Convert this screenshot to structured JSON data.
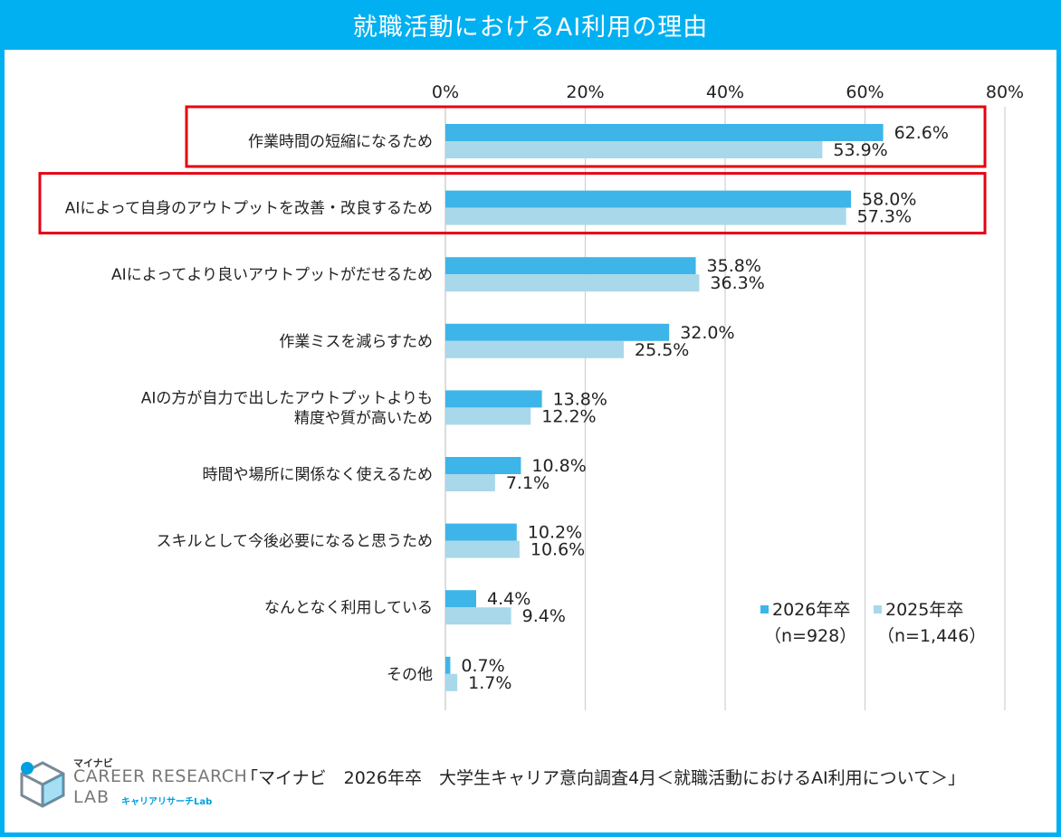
{
  "title": "就職活動におけるAI利用の理由",
  "chart_data": {
    "type": "bar",
    "orientation": "horizontal",
    "title": "就職活動におけるAI利用の理由",
    "categories": [
      "作業時間の短縮になるため",
      "AIによって自身のアウトプットを改善・改良するため",
      "AIによってより良いアウトプットがだせるため",
      "作業ミスを減らすため",
      "AIの方が自力で出したアウトプットよりも\n精度や質が高いため",
      "時間や場所に関係なく使えるため",
      "スキルとして今後必要になると思うため",
      "なんとなく利用している",
      "その他"
    ],
    "series": [
      {
        "name": "2026年卒",
        "sample": "（n=928）",
        "color": "#3db5e8",
        "values": [
          62.6,
          58.0,
          35.8,
          32.0,
          13.8,
          10.8,
          10.2,
          4.4,
          0.7
        ],
        "labels": [
          "62.6%",
          "58.0%",
          "35.8%",
          "32.0%",
          "13.8%",
          "10.8%",
          "10.2%",
          "4.4%",
          "0.7%"
        ]
      },
      {
        "name": "2025年卒",
        "sample": "（n=1,446）",
        "color": "#a8d8ea",
        "values": [
          53.9,
          57.3,
          36.3,
          25.5,
          12.2,
          7.1,
          10.6,
          9.4,
          1.7
        ],
        "labels": [
          "53.9%",
          "57.3%",
          "36.3%",
          "25.5%",
          "12.2%",
          "7.1%",
          "10.6%",
          "9.4%",
          "1.7%"
        ]
      }
    ],
    "xlim": [
      0,
      80
    ],
    "ticks": [
      "0%",
      "20%",
      "40%",
      "60%",
      "80%"
    ],
    "grid": true,
    "legend_position": "bottom-right",
    "highlighted_categories": [
      0,
      1
    ],
    "highlight_color": "#e60012"
  },
  "logo": {
    "brand": "マイナビ",
    "name": "CAREER RESEARCH",
    "lab": "LAB",
    "sub": "キャリアリサーチLab"
  },
  "source": "「マイナビ　2026年卒　大学生キャリア意向調査4月＜就職活動におけるAI利用について＞」"
}
